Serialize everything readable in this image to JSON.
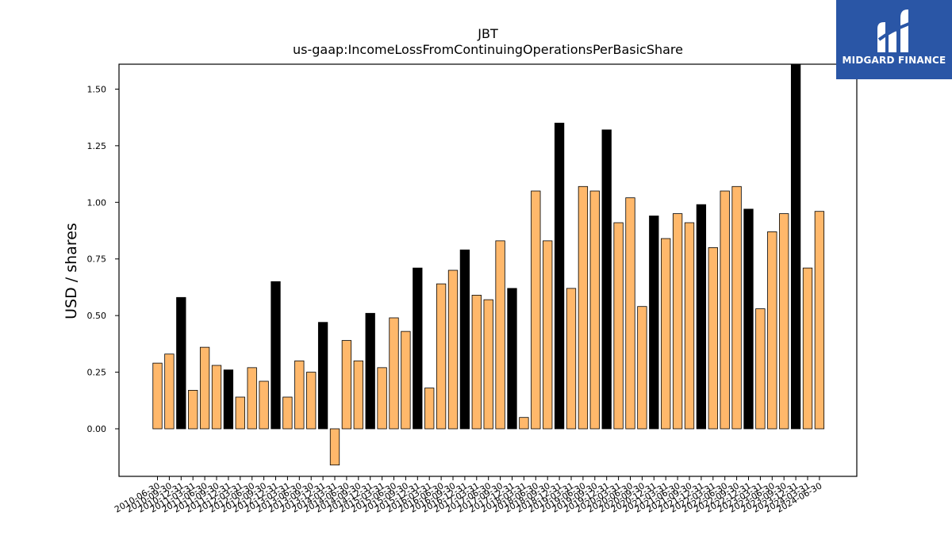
{
  "chart_data": {
    "type": "bar",
    "title": "JBT",
    "subtitle": "us-gaap:IncomeLossFromContinuingOperationsPerBasicShare",
    "xlabel": "",
    "ylabel": "USD / shares",
    "ylim": [
      -0.21,
      1.61
    ],
    "yticks": [
      "0.00",
      "0.25",
      "0.50",
      "0.75",
      "1.00",
      "1.25",
      "1.50"
    ],
    "grid": false,
    "colors": {
      "quarter": "#ffb86b",
      "annual": "#000000",
      "edge": "#000000"
    },
    "categories": [
      "2010-06-30",
      "2010-09-30",
      "2010-12-31",
      "2011-03-31",
      "2011-06-30",
      "2011-09-30",
      "2011-12-31",
      "2012-03-31",
      "2012-06-30",
      "2012-09-30",
      "2012-12-31",
      "2013-03-31",
      "2013-06-30",
      "2013-09-30",
      "2013-12-31",
      "2014-03-31",
      "2014-06-30",
      "2014-09-30",
      "2014-12-31",
      "2015-03-31",
      "2015-06-30",
      "2015-09-30",
      "2015-12-31",
      "2016-03-31",
      "2016-06-30",
      "2016-09-30",
      "2016-12-31",
      "2017-03-31",
      "2017-06-30",
      "2017-09-30",
      "2017-12-31",
      "2018-03-31",
      "2018-06-30",
      "2018-09-30",
      "2018-12-31",
      "2019-03-31",
      "2019-06-30",
      "2019-09-30",
      "2019-12-31",
      "2020-03-31",
      "2020-06-30",
      "2020-09-30",
      "2020-12-31",
      "2021-03-31",
      "2021-06-30",
      "2021-09-30",
      "2021-12-31",
      "2022-03-31",
      "2022-06-30",
      "2022-09-30",
      "2022-12-31",
      "2023-03-31",
      "2023-06-30",
      "2023-09-30",
      "2023-12-31",
      "2024-03-31",
      "2024-06-30"
    ],
    "values": [
      0.29,
      0.33,
      0.58,
      0.17,
      0.36,
      0.28,
      0.26,
      0.14,
      0.27,
      0.21,
      0.65,
      0.14,
      0.3,
      0.25,
      0.47,
      -0.16,
      0.39,
      0.3,
      0.51,
      0.27,
      0.49,
      0.43,
      0.71,
      0.18,
      0.64,
      0.7,
      0.79,
      0.59,
      0.57,
      0.83,
      0.62,
      0.05,
      1.05,
      0.83,
      1.35,
      0.62,
      1.07,
      1.05,
      1.32,
      0.91,
      1.02,
      0.54,
      0.94,
      0.84,
      0.95,
      0.91,
      0.99,
      0.8,
      1.05,
      1.07,
      0.97,
      0.53,
      0.87,
      0.95,
      1.61,
      0.71,
      0.96
    ],
    "annual": [
      false,
      false,
      true,
      false,
      false,
      false,
      true,
      false,
      false,
      false,
      true,
      false,
      false,
      false,
      true,
      false,
      false,
      false,
      true,
      false,
      false,
      false,
      true,
      false,
      false,
      false,
      true,
      false,
      false,
      false,
      true,
      false,
      false,
      false,
      true,
      false,
      false,
      false,
      true,
      false,
      false,
      false,
      true,
      false,
      false,
      false,
      true,
      false,
      false,
      false,
      true,
      false,
      false,
      false,
      true,
      false,
      false
    ]
  },
  "logo": {
    "text": "MIDGARD FINANCE",
    "background": "#2a56a6"
  }
}
